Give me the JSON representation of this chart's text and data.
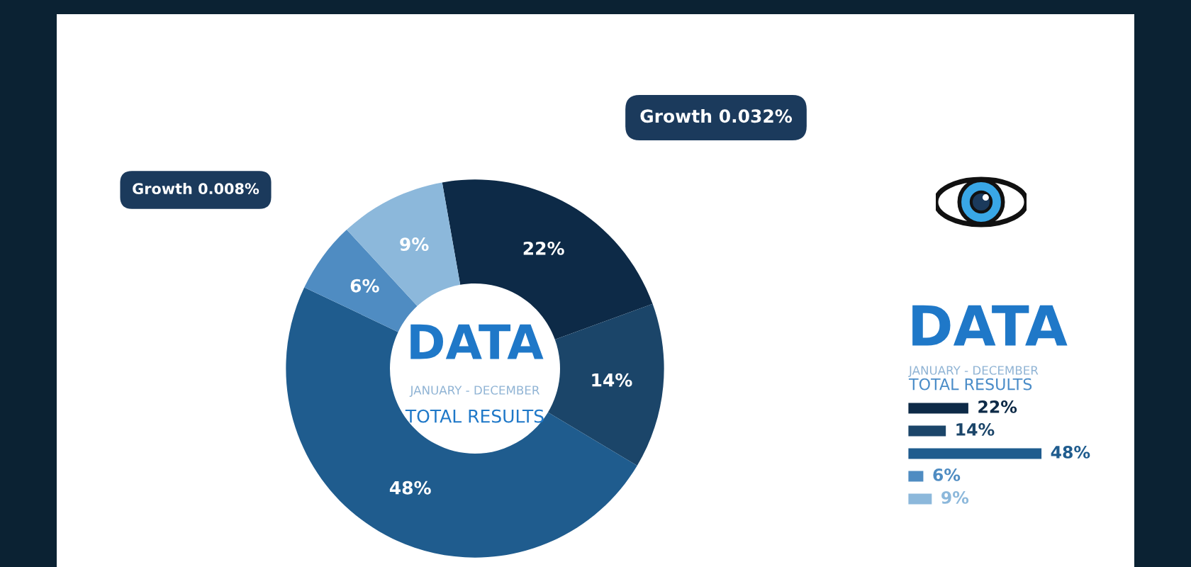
{
  "chart_data": [
    {
      "type": "donut",
      "title": "DATA",
      "subtitle": "JANUARY - DECEMBER",
      "annotations": [
        "TOTAL RESULTS",
        "Growth 0.008%",
        "Growth 0.032%"
      ],
      "categories": [
        null,
        null,
        null,
        null,
        null
      ],
      "values": [
        22,
        14,
        48,
        6,
        9
      ],
      "colors": [
        "#0d2a47",
        "#1b4569",
        "#1f5c8e",
        "#4f8cc2",
        "#8cb8db"
      ],
      "value_labels": [
        "22%",
        "14%",
        "48%",
        "6%",
        "9%"
      ]
    },
    {
      "type": "bar",
      "orientation": "horizontal",
      "tick_labels": false,
      "title": "DATA",
      "subtitle": "JANUARY - DECEMBER",
      "annotations": [
        "TOTAL RESULTS"
      ],
      "categories": [
        null,
        null,
        null,
        null,
        null
      ],
      "values": [
        22,
        14,
        48,
        6,
        9
      ],
      "colors": [
        "#0d2a47",
        "#1b4569",
        "#1f5c8e",
        "#4f8cc2",
        "#8cb8db"
      ],
      "value_labels": [
        "22%",
        "14%",
        "48%",
        "6%",
        "9%"
      ]
    }
  ]
}
